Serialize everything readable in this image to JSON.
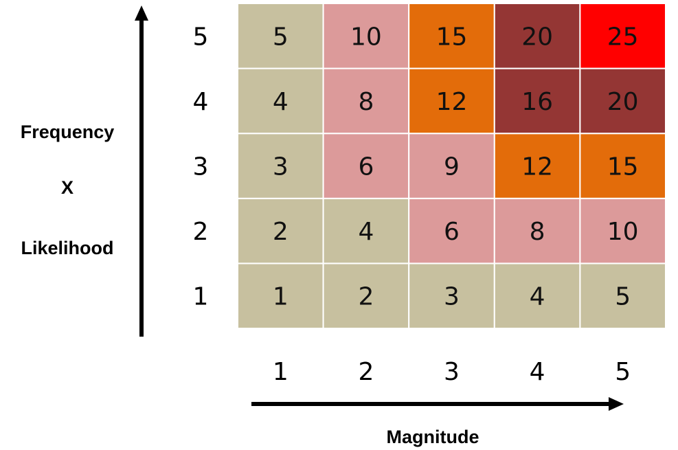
{
  "chart_data": {
    "type": "heatmap",
    "x_ticks": [
      "1",
      "2",
      "3",
      "4",
      "5"
    ],
    "y_ticks": [
      "1",
      "2",
      "3",
      "4",
      "5"
    ],
    "values": [
      [
        1,
        2,
        3,
        4,
        5
      ],
      [
        2,
        4,
        6,
        8,
        10
      ],
      [
        3,
        6,
        9,
        12,
        15
      ],
      [
        4,
        8,
        12,
        16,
        20
      ],
      [
        5,
        10,
        15,
        20,
        25
      ]
    ],
    "xlabel": "Magnitude",
    "ylabel_lines": [
      "Frequency",
      "X",
      "Likelihood"
    ],
    "colors": {
      "low": "#c7c09f",
      "medium_low": "#dc9a9a",
      "medium_high": "#e36c0a",
      "high": "#943634",
      "extreme": "#ff0000",
      "cell_border": "#ffffff",
      "arrow": "#000000"
    },
    "color_thresholds": [
      {
        "max": 5,
        "color_key": "low"
      },
      {
        "max": 10,
        "color_key": "medium_low"
      },
      {
        "max": 15,
        "color_key": "medium_high"
      },
      {
        "max": 20,
        "color_key": "high"
      },
      {
        "max": 25,
        "color_key": "extreme"
      }
    ],
    "grid": true,
    "legend": "none"
  }
}
